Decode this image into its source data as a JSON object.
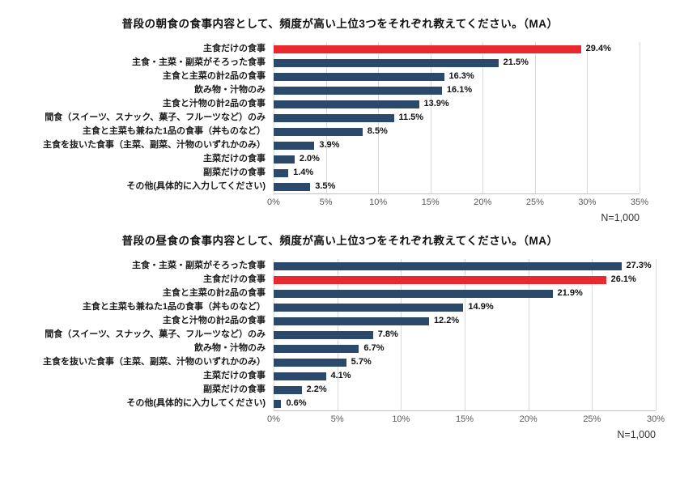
{
  "colors": {
    "bar": "#2b4a6b",
    "highlight": "#e8292f",
    "grid": "#d9d9d9",
    "tick_text": "#595959"
  },
  "chart_data": [
    {
      "type": "bar",
      "orientation": "horizontal",
      "title": "普段の朝食の食事内容として、頻度が高い上位3つをそれぞれ教えてください。（MA）",
      "categories": [
        "主食だけの食事",
        "主食・主菜・副菜がそろった食事",
        "主食と主菜の計2品の食事",
        "飲み物・汁物のみ",
        "主食と汁物の計2品の食事",
        "間食（スイーツ、スナック、菓子、フルーツなど）のみ",
        "主食と主菜も兼ねた1品の食事（丼ものなど）",
        "主食を抜いた食事（主菜、副菜、汁物のいずれかのみ）",
        "主菜だけの食事",
        "副菜だけの食事",
        "その他(具体的に入力してください)"
      ],
      "values": [
        29.4,
        21.5,
        16.3,
        16.1,
        13.9,
        11.5,
        8.5,
        3.9,
        2.0,
        1.4,
        3.5
      ],
      "highlight_index": 0,
      "xlim": [
        0,
        35
      ],
      "xtick_step": 5,
      "xticks": [
        "0%",
        "5%",
        "10%",
        "15%",
        "20%",
        "25%",
        "30%",
        "35%"
      ],
      "n_label": "N=1,000",
      "grid": true,
      "legend": "none"
    },
    {
      "type": "bar",
      "orientation": "horizontal",
      "title": "普段の昼食の食事内容として、頻度が高い上位3つをそれぞれ教えてください。（MA）",
      "categories": [
        "主食・主菜・副菜がそろった食事",
        "主食だけの食事",
        "主食と主菜の計2品の食事",
        "主食と主菜も兼ねた1品の食事（丼ものなど）",
        "主食と汁物の計2品の食事",
        "間食（スイーツ、スナック、菓子、フルーツなど）のみ",
        "飲み物・汁物のみ",
        "主食を抜いた食事（主菜、副菜、汁物のいずれかのみ）",
        "主菜だけの食事",
        "副菜だけの食事",
        "その他(具体的に入力してください)"
      ],
      "values": [
        27.3,
        26.1,
        21.9,
        14.9,
        12.2,
        7.8,
        6.7,
        5.7,
        4.1,
        2.2,
        0.6
      ],
      "highlight_index": 1,
      "xlim": [
        0,
        30
      ],
      "xtick_step": 5,
      "xticks": [
        "0%",
        "5%",
        "10%",
        "15%",
        "20%",
        "25%",
        "30%"
      ],
      "n_label": "N=1,000",
      "grid": true,
      "legend": "none"
    }
  ]
}
